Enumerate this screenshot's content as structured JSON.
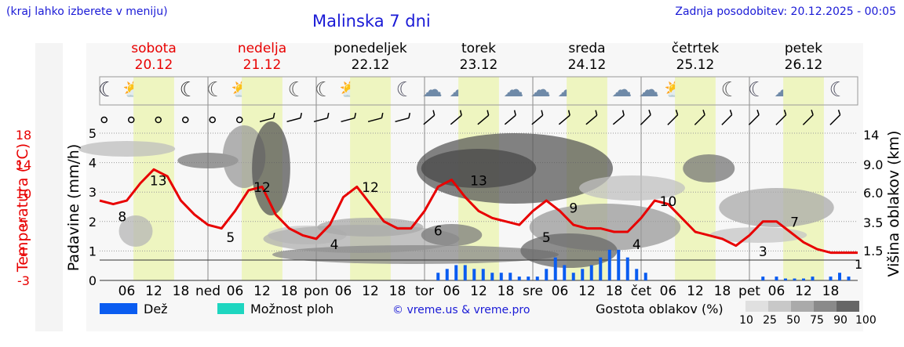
{
  "header": {
    "region_hint": "(kraj lahko izberete v meniju)",
    "title": "Malinska 7 dni",
    "updated": "Zadnja posodobitev: 20.12.2025 - 00:05"
  },
  "days": [
    {
      "name": "sobota",
      "date": "20.12",
      "weekend": true
    },
    {
      "name": "nedelja",
      "date": "21.12",
      "weekend": true
    },
    {
      "name": "ponedeljek",
      "date": "22.12",
      "weekend": false
    },
    {
      "name": "torek",
      "date": "23.12",
      "weekend": false
    },
    {
      "name": "sreda",
      "date": "24.12",
      "weekend": false
    },
    {
      "name": "četrtek",
      "date": "25.12",
      "weekend": false
    },
    {
      "name": "petek",
      "date": "26.12",
      "weekend": false
    }
  ],
  "weather_icons": [
    "fog-moon-icon",
    "sun-cloud-icon",
    "sun-icon",
    "moon-icon",
    "moon-cloud-icon",
    "sun-cloud-icon",
    "sun-cloud-icon",
    "moon-cloud-icon",
    "moon-cloud-icon",
    "sun-cloud-icon",
    "sun-cloud-icon",
    "moon-rain-icon",
    "rain-cloud-icon",
    "rain-cloud-icon",
    "rain-cloud-icon",
    "rain-cloud-icon",
    "rain-cloud-icon",
    "rain-cloud-icon",
    "rain-cloud-icon",
    "rain-cloud-icon",
    "rain-cloud-icon",
    "sun-cloud-icon",
    "sun-cloud-icon",
    "moon-cloud-icon",
    "moon-rain-icon",
    "rain-cloud-icon",
    "rain-cloud-icon",
    "moon-rain-icon"
  ],
  "axes": {
    "left_title": "Temperatura (°C)",
    "mid_title": "Padavine (mm/h)",
    "right_title": "Višina oblakov (km)",
    "temp_ticks": [
      "18",
      "14",
      "10",
      "5",
      "1",
      "-3"
    ],
    "precip_ticks": [
      "5",
      "4",
      "3",
      "2",
      "1",
      "0"
    ],
    "cloud_ticks": [
      "14",
      "9.0",
      "6.0",
      "3.5",
      "1.5"
    ],
    "time_ticks": [
      "06",
      "12",
      "18",
      "ned",
      "06",
      "12",
      "18",
      "pon",
      "06",
      "12",
      "18",
      "tor",
      "06",
      "12",
      "18",
      "sre",
      "06",
      "12",
      "18",
      "čet",
      "06",
      "12",
      "18",
      "pet",
      "06",
      "12",
      "18"
    ],
    "extra_right_tick": "1"
  },
  "legend": {
    "rain": "Dež",
    "storm": "Možnost ploh",
    "copyright": "© vreme.us & vreme.pro",
    "cloud_density": "Gostota oblakov (%)",
    "density_steps": [
      "10",
      "25",
      "50",
      "75",
      "90",
      "100"
    ],
    "colors": {
      "rain": "#0a5cf0",
      "storm": "#1ed6c0",
      "temp_line": "#e80000",
      "day_band": "#eef5c0"
    }
  },
  "chart_data": {
    "type": "line",
    "title": "Malinska 7 dni",
    "xlabel": "",
    "ylabel": "Temperatura (°C)",
    "x_unit": "hours since 20.12 00:00",
    "x_range": [
      0,
      168
    ],
    "ylim": [
      -3,
      18
    ],
    "series": [
      {
        "name": "Temperatura (°C)",
        "x": [
          0,
          3,
          6,
          9,
          12,
          15,
          18,
          21,
          24,
          27,
          30,
          33,
          36,
          39,
          42,
          45,
          48,
          51,
          54,
          57,
          60,
          63,
          66,
          69,
          72,
          75,
          78,
          81,
          84,
          87,
          90,
          93,
          96,
          99,
          102,
          105,
          108,
          111,
          114,
          117,
          120,
          123,
          126,
          129,
          132,
          135,
          138,
          141,
          144,
          147,
          150,
          153,
          156,
          159,
          162,
          165,
          168
        ],
        "values": [
          8.5,
          8,
          8.5,
          11,
          13,
          12,
          8.5,
          6.5,
          5,
          4.5,
          7,
          10,
          10.5,
          6.5,
          4.5,
          3.5,
          3,
          5,
          9,
          10.5,
          8,
          5.5,
          4.5,
          4.5,
          7,
          10.5,
          11.5,
          9,
          7,
          6,
          5.5,
          5,
          7,
          8.5,
          7,
          5,
          4.5,
          4.5,
          4,
          4,
          6,
          8.5,
          8,
          6,
          4,
          3.5,
          3,
          2,
          3.5,
          5.5,
          5.5,
          4,
          2.5,
          1.5,
          1,
          1,
          1
        ]
      },
      {
        "name": "Dež (mm/h)",
        "x": [
          75,
          77,
          79,
          81,
          83,
          85,
          87,
          89,
          91,
          93,
          95,
          97,
          99,
          101,
          103,
          105,
          107,
          109,
          111,
          113,
          115,
          117,
          119,
          121,
          147,
          150,
          152,
          154,
          156,
          158,
          162,
          164,
          166
        ],
        "values": [
          0.2,
          0.3,
          0.4,
          0.4,
          0.3,
          0.3,
          0.2,
          0.2,
          0.2,
          0.1,
          0.1,
          0.1,
          0.3,
          0.6,
          0.4,
          0.2,
          0.3,
          0.4,
          0.6,
          0.8,
          0.8,
          0.6,
          0.3,
          0.2,
          0.1,
          0.1,
          0.05,
          0.05,
          0.05,
          0.1,
          0.1,
          0.2,
          0.1
        ]
      }
    ],
    "temperature_labels": [
      {
        "x": 5,
        "value": "8"
      },
      {
        "x": 13,
        "value": "13"
      },
      {
        "x": 29,
        "value": "5"
      },
      {
        "x": 36,
        "value": "12"
      },
      {
        "x": 52,
        "value": "4"
      },
      {
        "x": 60,
        "value": "12"
      },
      {
        "x": 75,
        "value": "6"
      },
      {
        "x": 84,
        "value": "13"
      },
      {
        "x": 99,
        "value": "5"
      },
      {
        "x": 105,
        "value": "9"
      },
      {
        "x": 119,
        "value": "4"
      },
      {
        "x": 126,
        "value": "10"
      },
      {
        "x": 147,
        "value": "3"
      },
      {
        "x": 154,
        "value": "7"
      }
    ]
  }
}
